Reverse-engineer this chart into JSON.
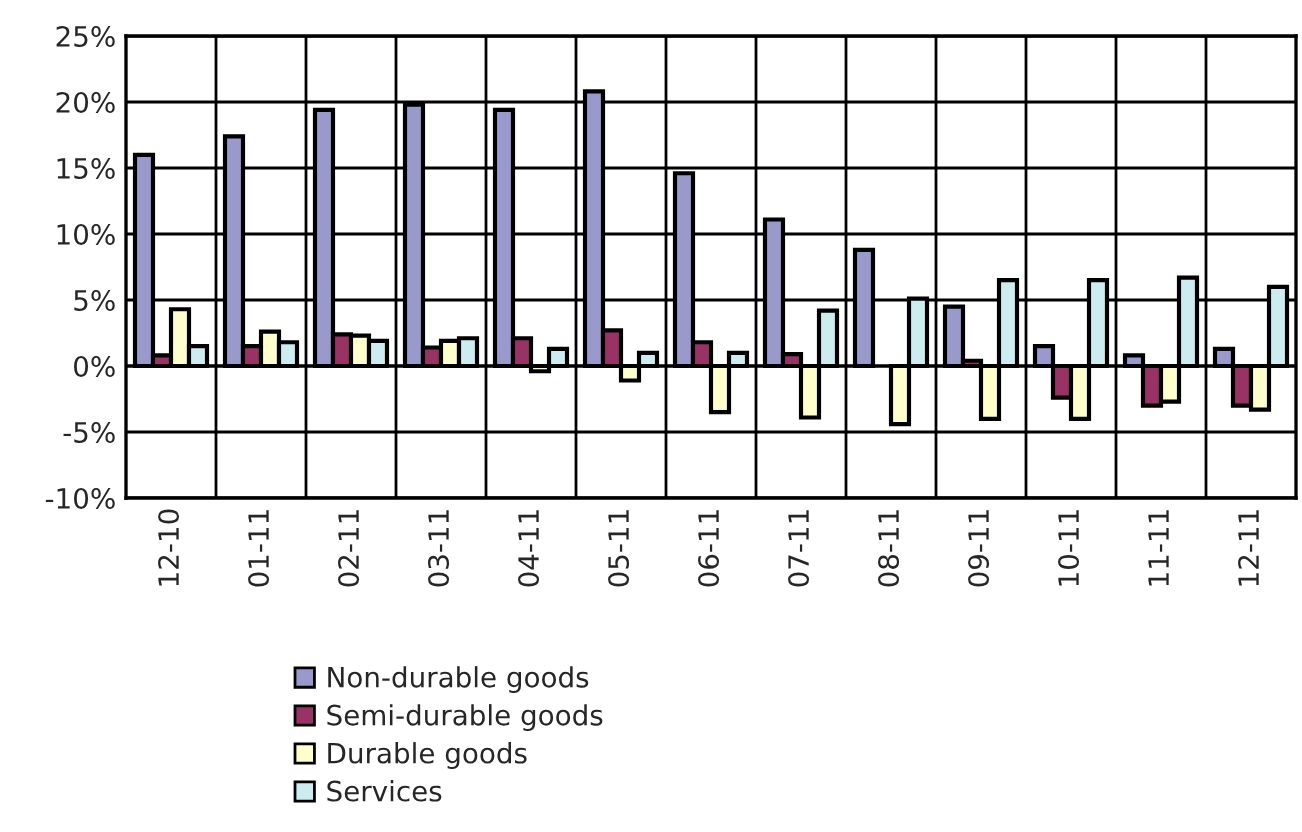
{
  "chart_data": {
    "type": "bar",
    "categories": [
      "12-10",
      "01-11",
      "02-11",
      "03-11",
      "04-11",
      "05-11",
      "06-11",
      "07-11",
      "08-11",
      "09-11",
      "10-11",
      "11-11",
      "12-11"
    ],
    "series": [
      {
        "name": "Non-durable goods",
        "color": "#9999cc",
        "values": [
          16.0,
          17.4,
          19.4,
          19.8,
          19.4,
          20.8,
          14.6,
          11.1,
          8.8,
          4.5,
          1.5,
          0.8,
          1.3
        ]
      },
      {
        "name": "Semi-durable goods",
        "color": "#993366",
        "values": [
          0.8,
          1.5,
          2.4,
          1.4,
          2.1,
          2.7,
          1.8,
          0.9,
          null,
          0.4,
          -2.4,
          -3.0,
          -3.0
        ]
      },
      {
        "name": "Durable goods",
        "color": "#ffffcc",
        "values": [
          4.3,
          2.6,
          2.3,
          1.9,
          -0.4,
          -1.1,
          -3.5,
          -3.9,
          -4.4,
          -4.0,
          -4.0,
          -2.7,
          -3.3
        ]
      },
      {
        "name": "Services",
        "color": "#ccecf0",
        "values": [
          1.5,
          1.8,
          1.9,
          2.1,
          1.3,
          1.0,
          1.0,
          4.2,
          5.1,
          6.5,
          6.5,
          6.7,
          6.0
        ]
      }
    ],
    "ylim": [
      -10,
      25
    ],
    "yticks": [
      {
        "value": -10,
        "label": "-10%"
      },
      {
        "value": -5,
        "label": "-5%"
      },
      {
        "value": 0,
        "label": "0%"
      },
      {
        "value": 5,
        "label": "5%"
      },
      {
        "value": 10,
        "label": "10%"
      },
      {
        "value": 15,
        "label": "15%"
      },
      {
        "value": 20,
        "label": "20%"
      },
      {
        "value": 25,
        "label": "25%"
      }
    ],
    "grid": true,
    "legend": "bottom"
  }
}
